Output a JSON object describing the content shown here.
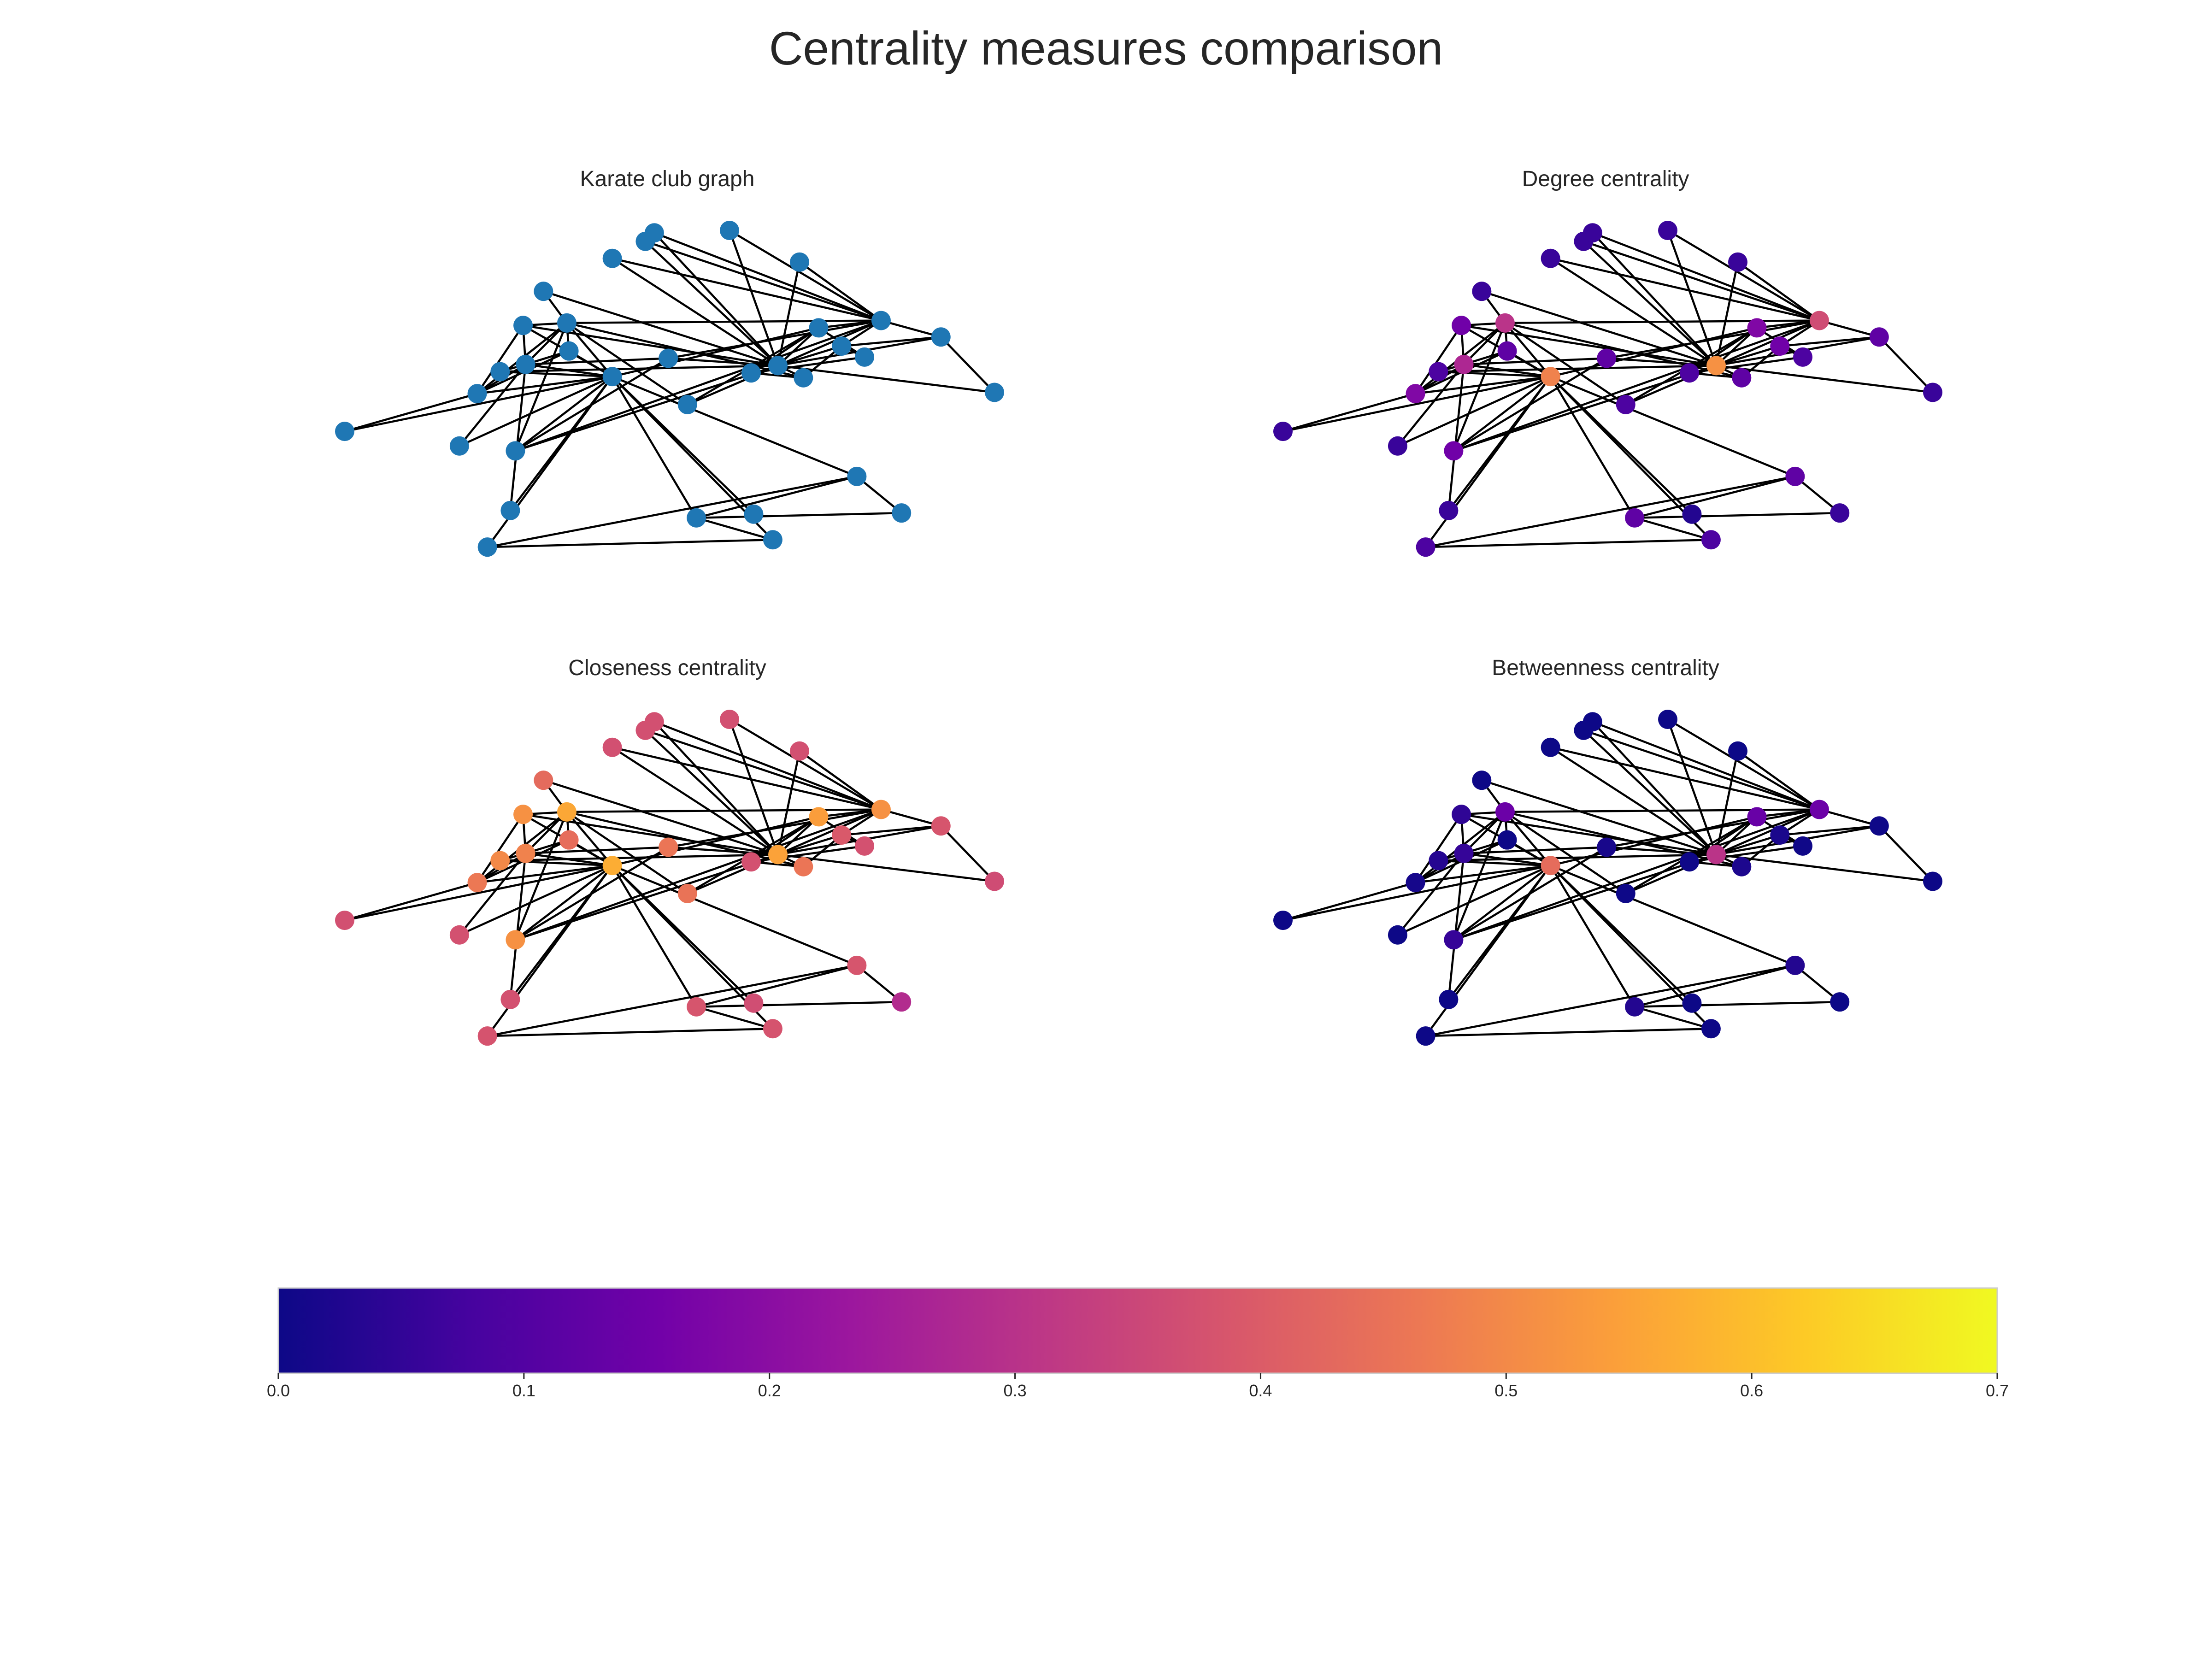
{
  "figure": {
    "title": "Centrality measures comparison",
    "default_node_color": "#1f77b4",
    "edge_color": "#000000",
    "colormap": "plasma",
    "colormap_stops": [
      "#0d0887",
      "#46039f",
      "#7201a8",
      "#9c179e",
      "#bd3786",
      "#d8576b",
      "#ed7953",
      "#fb9f3a",
      "#fdca26",
      "#f0f921"
    ]
  },
  "chart_data": {
    "type": "network",
    "node_count": 34,
    "edges": [
      [
        0,
        1
      ],
      [
        0,
        2
      ],
      [
        0,
        3
      ],
      [
        0,
        4
      ],
      [
        0,
        5
      ],
      [
        0,
        6
      ],
      [
        0,
        7
      ],
      [
        0,
        8
      ],
      [
        0,
        10
      ],
      [
        0,
        11
      ],
      [
        0,
        12
      ],
      [
        0,
        13
      ],
      [
        0,
        17
      ],
      [
        0,
        19
      ],
      [
        0,
        21
      ],
      [
        0,
        31
      ],
      [
        1,
        2
      ],
      [
        1,
        3
      ],
      [
        1,
        7
      ],
      [
        1,
        13
      ],
      [
        1,
        17
      ],
      [
        1,
        19
      ],
      [
        1,
        21
      ],
      [
        1,
        30
      ],
      [
        2,
        3
      ],
      [
        2,
        7
      ],
      [
        2,
        8
      ],
      [
        2,
        9
      ],
      [
        2,
        13
      ],
      [
        2,
        27
      ],
      [
        2,
        28
      ],
      [
        2,
        32
      ],
      [
        3,
        7
      ],
      [
        3,
        12
      ],
      [
        3,
        13
      ],
      [
        4,
        6
      ],
      [
        4,
        10
      ],
      [
        5,
        6
      ],
      [
        5,
        10
      ],
      [
        5,
        16
      ],
      [
        6,
        16
      ],
      [
        8,
        30
      ],
      [
        8,
        32
      ],
      [
        8,
        33
      ],
      [
        9,
        33
      ],
      [
        13,
        33
      ],
      [
        14,
        32
      ],
      [
        14,
        33
      ],
      [
        15,
        32
      ],
      [
        15,
        33
      ],
      [
        18,
        32
      ],
      [
        18,
        33
      ],
      [
        19,
        33
      ],
      [
        20,
        32
      ],
      [
        20,
        33
      ],
      [
        22,
        32
      ],
      [
        22,
        33
      ],
      [
        23,
        25
      ],
      [
        23,
        27
      ],
      [
        23,
        29
      ],
      [
        23,
        32
      ],
      [
        23,
        33
      ],
      [
        24,
        25
      ],
      [
        24,
        27
      ],
      [
        24,
        31
      ],
      [
        25,
        31
      ],
      [
        26,
        29
      ],
      [
        26,
        33
      ],
      [
        27,
        33
      ],
      [
        28,
        31
      ],
      [
        28,
        33
      ],
      [
        29,
        32
      ],
      [
        29,
        33
      ],
      [
        30,
        32
      ],
      [
        30,
        33
      ],
      [
        31,
        32
      ],
      [
        31,
        33
      ],
      [
        32,
        33
      ]
    ],
    "node_layout": [
      [
        0.4118,
        0.4286
      ],
      [
        0.2784,
        0.3929
      ],
      [
        0.3418,
        0.2714
      ],
      [
        0.2039,
        0.4786
      ],
      [
        0.6588,
        0.9071
      ],
      [
        0.7882,
        0.7214
      ],
      [
        0.5412,
        0.8429
      ],
      [
        0.3451,
        0.3536
      ],
      [
        0.2627,
        0.6464
      ],
      [
        0.3059,
        0.1786
      ],
      [
        0.2196,
        0.9286
      ],
      [
        0.6294,
        0.8321
      ],
      [
        0.0,
        0.5893
      ],
      [
        0.2745,
        0.2786
      ],
      [
        0.4627,
        0.0321
      ],
      [
        0.5922,
        0.0
      ],
      [
        0.8569,
        0.8286
      ],
      [
        0.1765,
        0.6321
      ],
      [
        0.4118,
        0.0821
      ],
      [
        0.2392,
        0.4143
      ],
      [
        0.4765,
        0.0071
      ],
      [
        0.2549,
        0.8214
      ],
      [
        0.7,
        0.0929
      ],
      [
        0.7647,
        0.3393
      ],
      [
        0.6255,
        0.4179
      ],
      [
        0.8,
        0.3714
      ],
      [
        1.0,
        0.475
      ],
      [
        0.7059,
        0.4321
      ],
      [
        0.5275,
        0.5107
      ],
      [
        0.9176,
        0.3125
      ],
      [
        0.498,
        0.375
      ],
      [
        0.7294,
        0.2857
      ],
      [
        0.8255,
        0.2643
      ],
      [
        0.6667,
        0.3964
      ]
    ],
    "panels": [
      {
        "title": "Karate club graph",
        "coloring": "uniform"
      },
      {
        "title": "Degree centrality",
        "coloring": "colormap",
        "values": [
          0.4848,
          0.2727,
          0.303,
          0.1818,
          0.0909,
          0.1212,
          0.1212,
          0.1212,
          0.1515,
          0.0606,
          0.0909,
          0.0303,
          0.0606,
          0.1515,
          0.0606,
          0.0606,
          0.0606,
          0.0606,
          0.0606,
          0.0909,
          0.0606,
          0.0606,
          0.0606,
          0.1515,
          0.0909,
          0.0909,
          0.0606,
          0.1212,
          0.0909,
          0.1212,
          0.1212,
          0.1818,
          0.3636,
          0.5152
        ]
      },
      {
        "title": "Closeness centrality",
        "coloring": "colormap",
        "values": [
          0.569,
          0.4853,
          0.5593,
          0.4648,
          0.3793,
          0.3837,
          0.3837,
          0.44,
          0.5156,
          0.4342,
          0.3793,
          0.3667,
          0.3708,
          0.5156,
          0.3708,
          0.3708,
          0.2845,
          0.375,
          0.3708,
          0.5,
          0.3708,
          0.375,
          0.3708,
          0.3929,
          0.375,
          0.375,
          0.3626,
          0.4583,
          0.4521,
          0.3837,
          0.4583,
          0.541,
          0.5156,
          0.55
        ]
      },
      {
        "title": "Betweenness centrality",
        "coloring": "colormap",
        "values": [
          0.4376,
          0.0539,
          0.1437,
          0.0119,
          0.0006,
          0.03,
          0.03,
          0.0,
          0.0559,
          0.0008,
          0.0006,
          0.0,
          0.0,
          0.0459,
          0.0,
          0.0,
          0.0,
          0.0,
          0.0,
          0.0325,
          0.0,
          0.0,
          0.0,
          0.0176,
          0.0022,
          0.0038,
          0.0,
          0.0223,
          0.0018,
          0.0029,
          0.0144,
          0.1383,
          0.1452,
          0.3041
        ]
      }
    ],
    "colorbar": {
      "orientation": "horizontal",
      "range": [
        0.0,
        0.7
      ],
      "ticks": [
        "0.0",
        "0.1",
        "0.2",
        "0.3",
        "0.4",
        "0.5",
        "0.6",
        "0.7"
      ]
    }
  }
}
